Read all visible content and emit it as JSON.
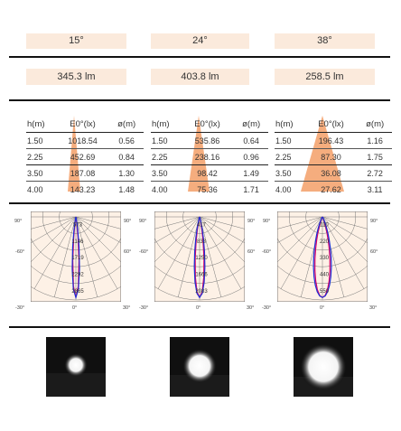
{
  "beam_angles": [
    "15°",
    "24°",
    "38°"
  ],
  "lumens": [
    "345.3 lm",
    "403.8 lm",
    "258.5 lm"
  ],
  "table_header": {
    "h": "h(m)",
    "e": "E0°(lx)",
    "d": "ø(m)"
  },
  "tables": [
    {
      "rows": [
        [
          "1.50",
          "1018.54",
          "0.56"
        ],
        [
          "2.25",
          "452.69",
          "0.84"
        ],
        [
          "3.50",
          "187.08",
          "1.30"
        ],
        [
          "4.00",
          "143.23",
          "1.48"
        ]
      ]
    },
    {
      "rows": [
        [
          "1.50",
          "535.86",
          "0.64"
        ],
        [
          "2.25",
          "238.16",
          "0.96"
        ],
        [
          "3.50",
          "98.42",
          "1.49"
        ],
        [
          "4.00",
          "75.36",
          "1.71"
        ]
      ]
    },
    {
      "rows": [
        [
          "1.50",
          "196.43",
          "1.16"
        ],
        [
          "2.25",
          "87.30",
          "1.75"
        ],
        [
          "3.50",
          "36.08",
          "2.72"
        ],
        [
          "4.00",
          "27.62",
          "3.11"
        ]
      ]
    }
  ],
  "polar_angle_labels": {
    "l90": "90°",
    "r90": "90°",
    "l60": "-60°",
    "r60": "60°",
    "l30": "-30°",
    "r30": "30°",
    "zero": "0°"
  },
  "polar_values": [
    [
      "573",
      "1146",
      "1719",
      "2292",
      "2865"
    ],
    [
      "417",
      "833",
      "1250",
      "1666",
      "2083"
    ],
    [
      "110",
      "220",
      "330",
      "440",
      "550"
    ]
  ],
  "colors": {
    "pill": "#fbeadc",
    "cone": "#f4a470",
    "curve_c0": "#d4006a",
    "curve_c90": "#1d2fd6",
    "grid": "#777777",
    "polar_fill": "#fdf1e6"
  }
}
